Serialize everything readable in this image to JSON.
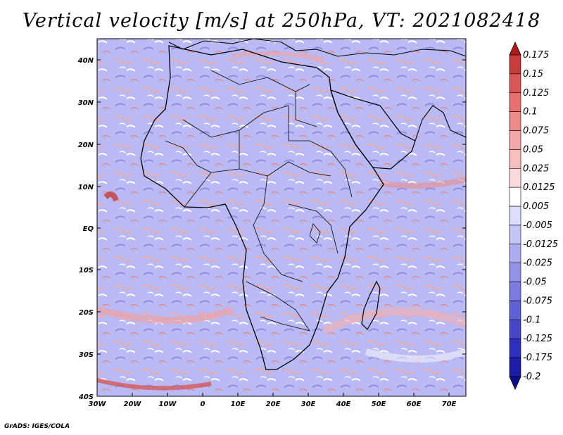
{
  "title": "Vertical velocity [m/s] at 250hPa, VT: 2021082418",
  "footer": "GrADS: IGES/COLA",
  "map": {
    "region": "Africa",
    "lon_range": [
      -30,
      75
    ],
    "lat_range": [
      -40,
      45
    ],
    "lat_ticks": [
      "40N",
      "30N",
      "20N",
      "10N",
      "EQ",
      "10S",
      "20S",
      "30S",
      "40S"
    ],
    "lon_ticks": [
      "30W",
      "20W",
      "10W",
      "0",
      "10E",
      "20E",
      "30E",
      "40E",
      "50E",
      "60E",
      "70E"
    ]
  },
  "colorbar": {
    "levels": [
      "0.175",
      "0.15",
      "0.125",
      "0.1",
      "0.075",
      "0.05",
      "0.025",
      "0.0125",
      "0.005",
      "-0.005",
      "-0.0125",
      "-0.025",
      "-0.05",
      "-0.075",
      "-0.1",
      "-0.125",
      "-0.175",
      "-0.2"
    ],
    "colors": [
      "#b31b1b",
      "#c93a3a",
      "#db5656",
      "#e77070",
      "#ee8a8a",
      "#f3a6a6",
      "#f7c0c0",
      "#fbdada",
      "#ffffff",
      "#dcdcfb",
      "#c4c4f6",
      "#ababf0",
      "#9393e8",
      "#7a7ae0",
      "#5f5fd6",
      "#4646cb",
      "#2e2ebf",
      "#1c1ca8",
      "#0e0e8a"
    ]
  }
}
